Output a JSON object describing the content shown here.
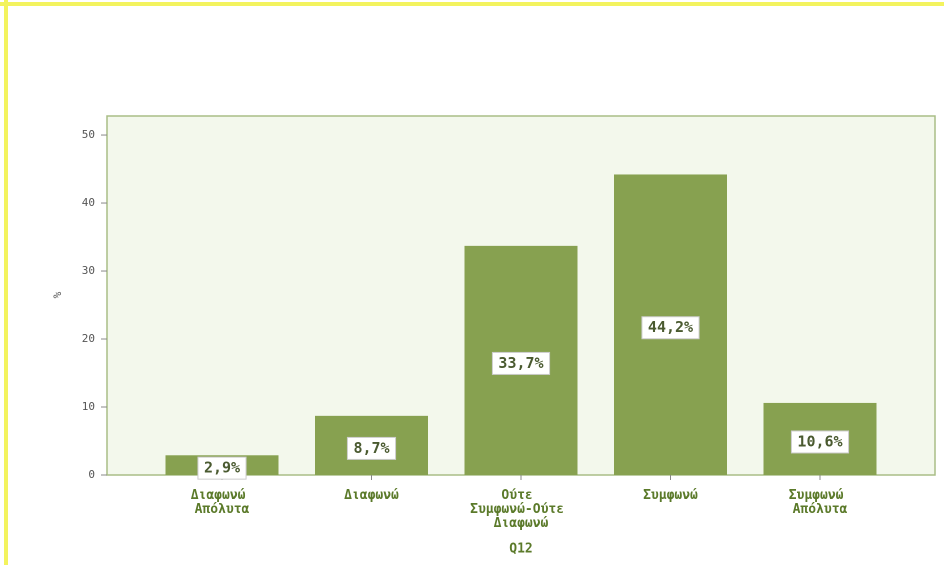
{
  "chart_data": {
    "type": "bar",
    "categories": [
      "Διαφωνώ Απόλυτα",
      "Διαφωνώ",
      "Ούτε Συμφωνώ-Ούτε Διαφωνώ",
      "Συμφωνώ",
      "Συμφωνώ Απόλυτα"
    ],
    "values": [
      2.9,
      8.7,
      33.7,
      44.2,
      10.6
    ],
    "value_labels": [
      "2,9%",
      "8,7%",
      "33,7%",
      "44,2%",
      "10,6%"
    ],
    "color": "#87a150",
    "ylabel": "%",
    "xlabel": "Q12",
    "ylim": [
      0,
      52.8
    ],
    "yticks": [
      0,
      10,
      20,
      30,
      40,
      50
    ]
  }
}
